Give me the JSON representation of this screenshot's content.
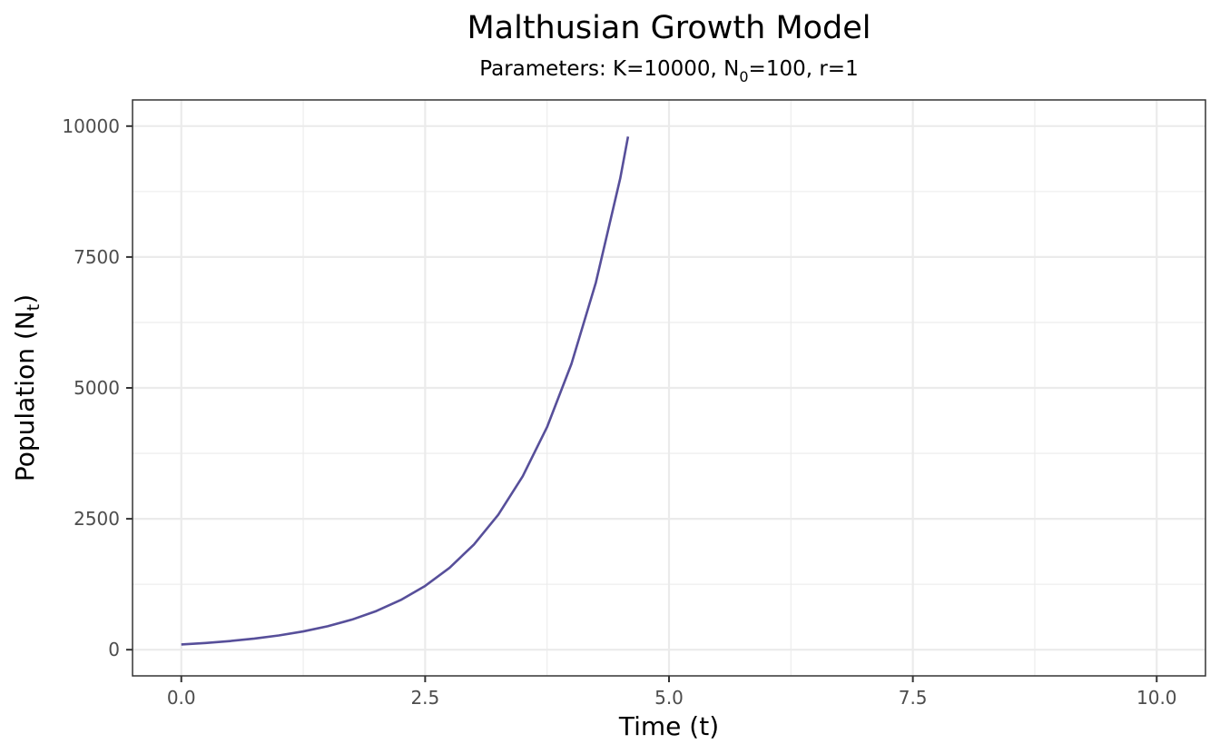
{
  "chart_data": {
    "type": "line",
    "title": "Malthusian Growth Model",
    "subtitle": {
      "prefix": "Parameters: K=10000, N",
      "sub": "0",
      "suffix": "=100, r=1"
    },
    "xlabel": "Time (t)",
    "ylabel": {
      "prefix": "Population (N",
      "sub": "t",
      "suffix": ")"
    },
    "xlim": [
      -0.5,
      10.5
    ],
    "ylim": [
      -500,
      10500
    ],
    "x_ticks": [
      0,
      2.5,
      5,
      7.5,
      10
    ],
    "x_tick_labels": [
      "0.0",
      "2.5",
      "5.0",
      "7.5",
      "10.0"
    ],
    "y_ticks": [
      0,
      2500,
      5000,
      7500,
      10000
    ],
    "y_tick_labels": [
      "0",
      "2500",
      "5000",
      "7500",
      "10000"
    ],
    "x_minor_ticks": [
      1.25,
      3.75,
      6.25,
      8.75
    ],
    "y_minor_ticks": [
      1250,
      3750,
      6250,
      8750
    ],
    "grid": true,
    "line_color": "#574f9a",
    "series": [
      {
        "x": [
          0,
          0.25,
          0.5,
          0.75,
          1,
          1.25,
          1.5,
          1.75,
          2,
          2.25,
          2.5,
          2.75,
          3,
          3.25,
          3.5,
          3.75,
          4,
          4.25,
          4.5,
          4.58
        ],
        "y": [
          100,
          128,
          165,
          212,
          272,
          349,
          448,
          575,
          739,
          949,
          1218,
          1564,
          2009,
          2579,
          3312,
          4252,
          5460,
          7011,
          9002,
          9800
        ]
      }
    ]
  }
}
